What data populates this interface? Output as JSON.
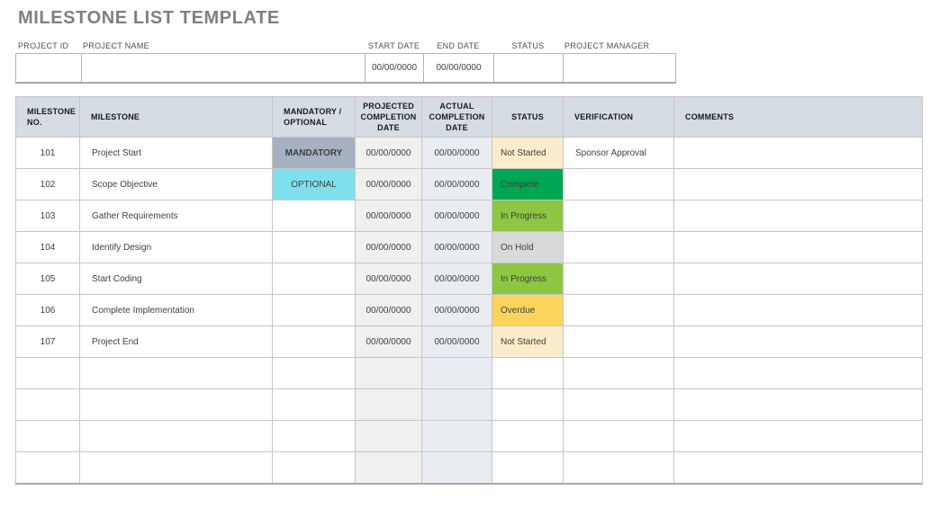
{
  "page_title": "MILESTONE LIST TEMPLATE",
  "project_info": {
    "fields": [
      {
        "label": "PROJECT ID",
        "value": ""
      },
      {
        "label": "PROJECT NAME",
        "value": ""
      },
      {
        "label": "START DATE",
        "value": "00/00/0000"
      },
      {
        "label": "END DATE",
        "value": "00/00/0000"
      },
      {
        "label": "STATUS",
        "value": ""
      },
      {
        "label": "PROJECT MANAGER",
        "value": ""
      }
    ]
  },
  "milestone_table": {
    "headers": [
      "MILESTONE NO.",
      "MILESTONE",
      "MANDATORY / OPTIONAL",
      "PROJECTED COMPLETION DATE",
      "ACTUAL COMPLETION DATE",
      "STATUS",
      "VERIFICATION",
      "COMMENTS"
    ],
    "rows": [
      {
        "no": "101",
        "milestone": "Project Start",
        "mandatory_optional": "MANDATORY",
        "projected_date": "00/00/0000",
        "actual_date": "00/00/0000",
        "status": "Not Started",
        "verification": "Sponsor Approval",
        "comments": ""
      },
      {
        "no": "102",
        "milestone": "Scope Objective",
        "mandatory_optional": "OPTIONAL",
        "projected_date": "00/00/0000",
        "actual_date": "00/00/0000",
        "status": "Complete",
        "verification": "",
        "comments": ""
      },
      {
        "no": "103",
        "milestone": "Gather Requirements",
        "mandatory_optional": "",
        "projected_date": "00/00/0000",
        "actual_date": "00/00/0000",
        "status": "In Progress",
        "verification": "",
        "comments": ""
      },
      {
        "no": "104",
        "milestone": "Identify Design",
        "mandatory_optional": "",
        "projected_date": "00/00/0000",
        "actual_date": "00/00/0000",
        "status": "On Hold",
        "verification": "",
        "comments": ""
      },
      {
        "no": "105",
        "milestone": "Start Coding",
        "mandatory_optional": "",
        "projected_date": "00/00/0000",
        "actual_date": "00/00/0000",
        "status": "In Progress",
        "verification": "",
        "comments": ""
      },
      {
        "no": "106",
        "milestone": "Complete Implementation",
        "mandatory_optional": "",
        "projected_date": "00/00/0000",
        "actual_date": "00/00/0000",
        "status": "Overdue",
        "verification": "",
        "comments": ""
      },
      {
        "no": "107",
        "milestone": "Project End",
        "mandatory_optional": "",
        "projected_date": "00/00/0000",
        "actual_date": "00/00/0000",
        "status": "Not Started",
        "verification": "",
        "comments": ""
      }
    ],
    "empty_row_count": 4
  },
  "colors": {
    "title_text": "#7f7f7f",
    "table_header_bg": "#d6dce4",
    "projected_col_bg": "#f0f0ee",
    "actual_col_bg": "#e9edf2",
    "mandatory_bg": "#a5b0c0",
    "optional_bg": "#7fe0ed",
    "status_not_started_bg": "#fcedca",
    "status_complete_bg": "#00a651",
    "status_in_progress_bg": "#8dc643",
    "status_on_hold_bg": "#d9d9d9",
    "status_overdue_bg": "#fbd45c"
  }
}
